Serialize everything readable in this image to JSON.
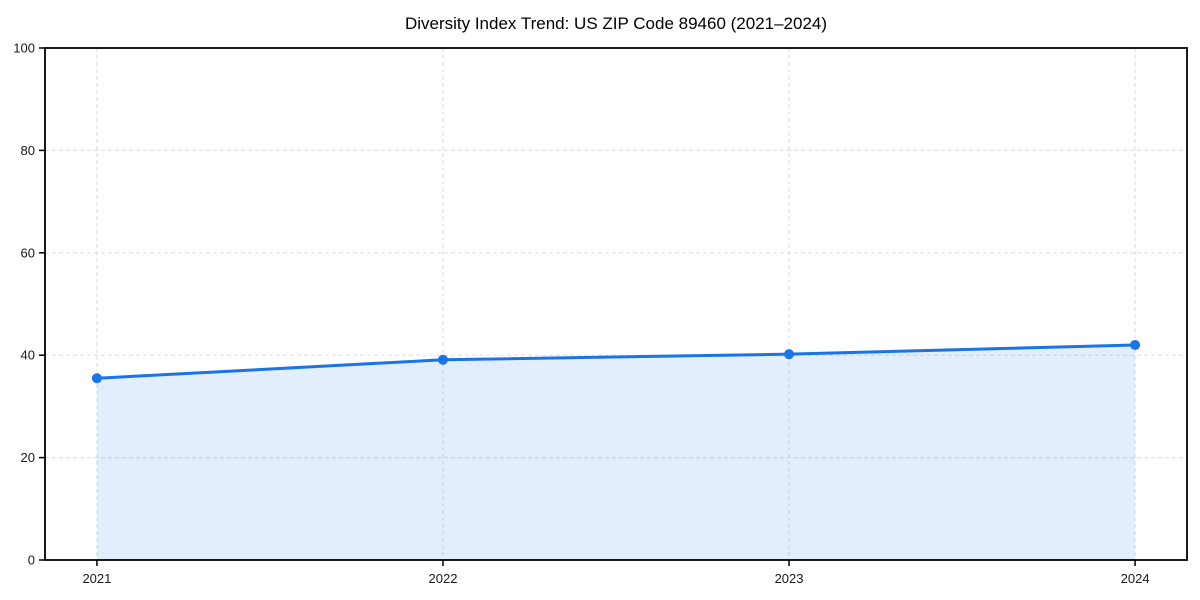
{
  "chart_data": {
    "type": "area",
    "title": "Diversity Index Trend: US ZIP Code 89460 (2021–2024)",
    "xlabel": "",
    "ylabel": "",
    "x": [
      2021,
      2022,
      2023,
      2024
    ],
    "x_tick_labels": [
      "2021",
      "2022",
      "2023",
      "2024"
    ],
    "series": [
      {
        "name": "Diversity Index",
        "values": [
          35.5,
          39.1,
          40.2,
          42.0
        ]
      }
    ],
    "ylim": [
      0,
      100
    ],
    "yticks": [
      0,
      20,
      40,
      60,
      80,
      100
    ],
    "y_tick_labels": [
      "0",
      "20",
      "40",
      "60",
      "80",
      "100"
    ],
    "x_range": [
      2020.85,
      2024.15
    ],
    "grid": true,
    "grid_style": "dashed",
    "legend": false,
    "baseline": 0,
    "colors": {
      "line": "#1a73e8",
      "marker": "#1a73e8",
      "fill": "rgba(26,115,232,0.12)",
      "grid": "#e0e0e0",
      "axis": "#000000",
      "text": "#1a1a1a",
      "background": "#ffffff"
    }
  }
}
